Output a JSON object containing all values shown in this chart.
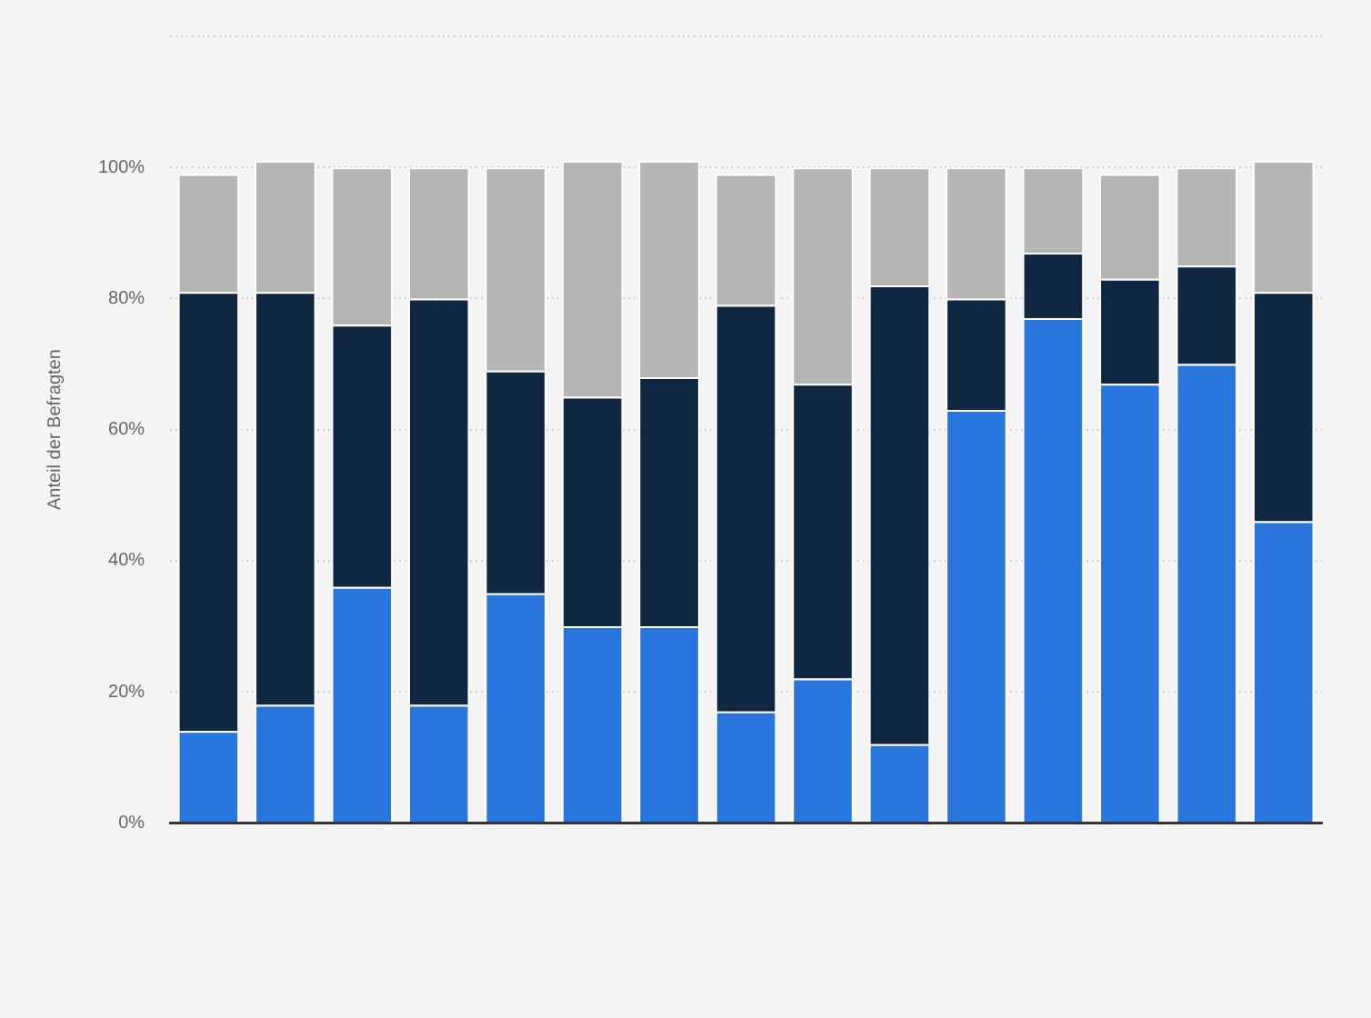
{
  "chart_data": {
    "type": "bar",
    "stacked": true,
    "ylabel": "Anteil der Befragten",
    "categories": [
      null,
      null,
      null,
      null,
      null,
      null,
      null,
      null,
      null,
      null,
      null,
      null,
      null,
      null,
      null
    ],
    "series": [
      {
        "color": "#2876dd",
        "values": [
          14,
          18,
          36,
          18,
          35,
          30,
          30,
          17,
          22,
          12,
          63,
          77,
          67,
          70,
          46
        ]
      },
      {
        "color": "#0f2740",
        "values": [
          67,
          63,
          40,
          62,
          34,
          35,
          38,
          62,
          45,
          70,
          17,
          10,
          16,
          15,
          35
        ]
      },
      {
        "color": "#b5b5b5",
        "values": [
          18,
          20,
          24,
          20,
          31,
          36,
          33,
          20,
          33,
          18,
          20,
          13,
          16,
          15,
          20
        ]
      }
    ],
    "ylim": [
      0,
      120
    ],
    "yticks": [
      {
        "value": 0,
        "label": "0%"
      },
      {
        "value": 20,
        "label": "20%"
      },
      {
        "value": 40,
        "label": "40%"
      },
      {
        "value": 60,
        "label": "60%"
      },
      {
        "value": 80,
        "label": "80%"
      },
      {
        "value": 100,
        "label": "100%"
      },
      {
        "value": 120,
        "label": null
      }
    ],
    "grid": "y",
    "legend": false
  }
}
